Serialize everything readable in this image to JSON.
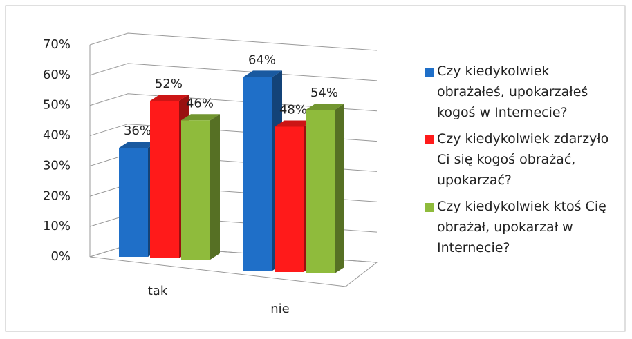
{
  "chart_data": {
    "type": "bar3d",
    "categories": [
      "tak",
      "nie"
    ],
    "series": [
      {
        "name": "Czy kiedykolwiek obrażałeś, upokarzałeś kogoś w Internecie?",
        "color": "#1f6fc8",
        "values": [
          36,
          64
        ],
        "value_labels": [
          "36%",
          "64%"
        ]
      },
      {
        "name": "Czy kiedykolwiek zdarzyło Ci się kogoś obrażać, upokarzać?",
        "color": "#ff1a1a",
        "values": [
          52,
          48
        ],
        "value_labels": [
          "52%",
          "48%"
        ]
      },
      {
        "name": "Czy kiedykolwiek ktoś Cię obrażał, upokarzał w Internecie?",
        "color": "#8fbb3c",
        "values": [
          46,
          54
        ],
        "value_labels": [
          "46%",
          "54%"
        ]
      }
    ],
    "ylim": [
      0,
      70
    ],
    "yticks": [
      {
        "value": 0,
        "label": "0%"
      },
      {
        "value": 10,
        "label": "10%"
      },
      {
        "value": 20,
        "label": "20%"
      },
      {
        "value": 30,
        "label": "30%"
      },
      {
        "value": 40,
        "label": "40%"
      },
      {
        "value": 50,
        "label": "50%"
      },
      {
        "value": 60,
        "label": "60%"
      },
      {
        "value": 70,
        "label": "70%"
      }
    ],
    "grid": true,
    "legend": "right"
  }
}
